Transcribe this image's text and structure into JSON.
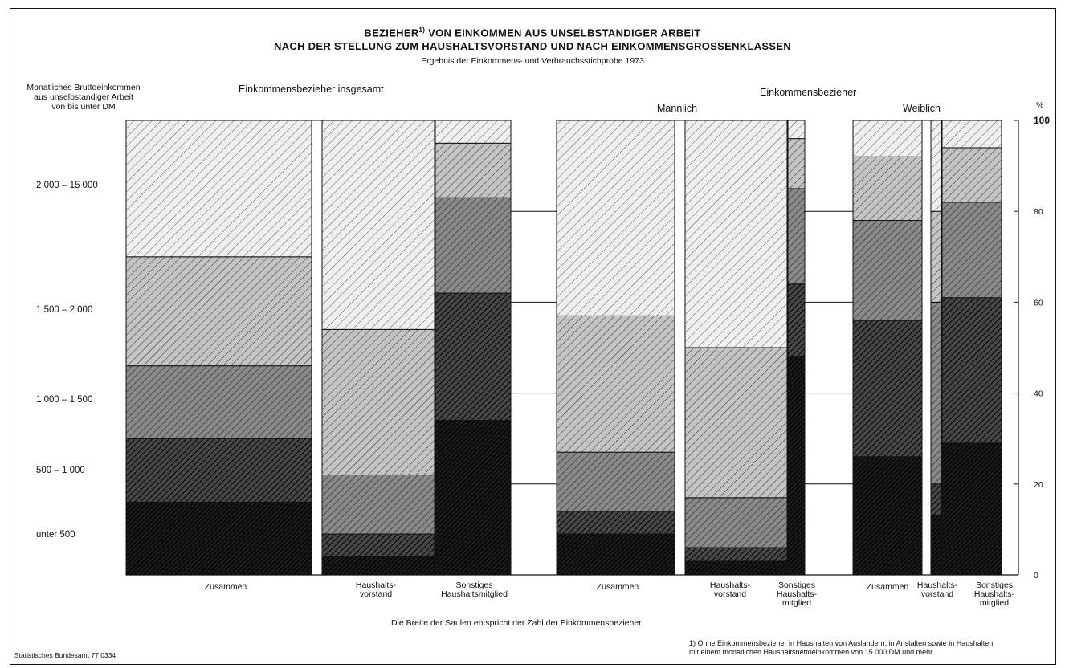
{
  "chart_data": {
    "type": "bar",
    "title_line1": "BEZIEHER",
    "title_footnote_mark": "1)",
    "title_line1_rest": "VON EINKOMMEN AUS UNSELBSTANDIGER ARBEIT",
    "title_line2": "NACH DER STELLUNG ZUM HAUSHALTSVORSTAND UND NACH EINKOMMENSGROSSENKLASSEN",
    "subtitle": "Ergebnis der Einkommens- und Verbrauchsstichprobe 1973",
    "ylabel_lines": [
      "Monatliches Bruttoeinkommen",
      "aus unselbstandiger Arbeit",
      "von    bis unter   DM"
    ],
    "right_axis_unit": "%",
    "right_axis_ticks": [
      "0",
      "20",
      "40",
      "60",
      "80",
      "100"
    ],
    "ylim": [
      0,
      100
    ],
    "categories": [
      "unter 500",
      "500 – 1 000",
      "1 000 – 1 500",
      "1 500 – 2 000",
      "2 000 – 15 000"
    ],
    "category_colors": [
      "#1c1c1c",
      "#474747",
      "#8a8a8a",
      "#c4c4c4",
      "#efefef"
    ],
    "groups": [
      {
        "label": "Einkommensbezieher insgesamt"
      },
      {
        "label": "Einkommensbezieher"
      },
      {
        "label": "Mannlich"
      },
      {
        "label": "Weiblich"
      }
    ],
    "series": [
      {
        "group": "Insgesamt",
        "label": "Zusammen",
        "values": [
          16,
          14,
          16,
          24,
          30
        ]
      },
      {
        "group": "Insgesamt",
        "label": "Haushalts-vorstand",
        "values": [
          4,
          5,
          13,
          32,
          46
        ]
      },
      {
        "group": "Insgesamt",
        "label": "Sonstiges Haushaltsmitglied",
        "values": [
          34,
          28,
          21,
          12,
          5
        ]
      },
      {
        "group": "Mannlich",
        "label": "Zusammen",
        "values": [
          9,
          5,
          13,
          30,
          43
        ]
      },
      {
        "group": "Mannlich",
        "label": "Haushalts-vorstand",
        "values": [
          3,
          3,
          11,
          33,
          50
        ]
      },
      {
        "group": "Mannlich",
        "label": "Sonstiges Haushaltsmitglied",
        "values": [
          48,
          16,
          21,
          11,
          4
        ]
      },
      {
        "group": "Weiblich",
        "label": "Zusammen",
        "values": [
          26,
          30,
          22,
          14,
          8
        ]
      },
      {
        "group": "Weiblich",
        "label": "Haushalts-vorstand",
        "values": [
          13,
          7,
          40,
          20,
          20
        ]
      },
      {
        "group": "Weiblich",
        "label": "Sonstiges Haushaltsmitglied",
        "values": [
          29,
          32,
          21,
          12,
          6
        ]
      }
    ],
    "xlabels": {
      "zusammen": "Zusammen",
      "haushaltsvorstand": [
        "Haushalts-",
        "vorstand"
      ],
      "sonstiges_insgesamt": [
        "Sonstiges",
        "Haushaltsmitglied"
      ],
      "sonstiges_split": [
        "Sonstiges",
        "Haushalts-",
        "mitglied"
      ]
    },
    "width_note": "Die Breite der Saulen entspricht der Zahl der Einkommensbezieher",
    "source": "Statistisches Bundesamt 77 0334",
    "footnote_lines": [
      "1) Ohne Einkommensbezieher in Haushalten von Auslandern, in Anstalten sowie in Haushalten",
      "mit einem monatlichen Haushaltsnettoeinkommen von 15 000 DM und mehr"
    ]
  }
}
